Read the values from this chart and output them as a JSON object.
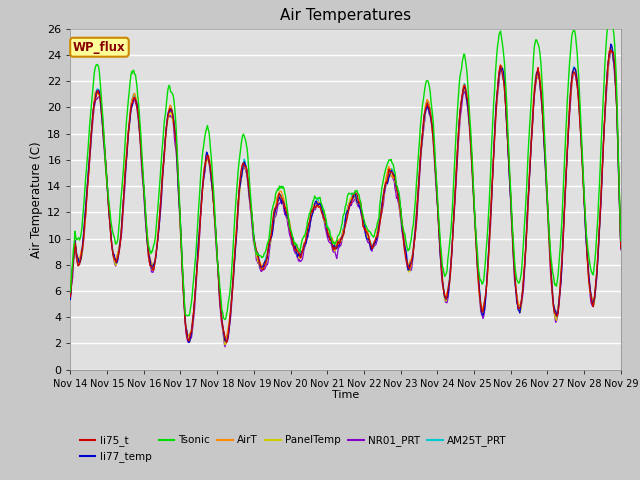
{
  "title": "Air Temperatures",
  "ylabel": "Air Temperature (C)",
  "xlabel": "Time",
  "ylim": [
    0,
    26
  ],
  "yticks": [
    0,
    2,
    4,
    6,
    8,
    10,
    12,
    14,
    16,
    18,
    20,
    22,
    24,
    26
  ],
  "xtick_labels": [
    "Nov 14",
    "Nov 15",
    "Nov 16",
    "Nov 17",
    "Nov 18",
    "Nov 19",
    "Nov 20",
    "Nov 21",
    "Nov 22",
    "Nov 23",
    "Nov 24",
    "Nov 25",
    "Nov 26",
    "Nov 27",
    "Nov 28",
    "Nov 29"
  ],
  "series_colors": {
    "li75_t": "#cc0000",
    "li77_temp": "#0000cc",
    "Tsonic": "#00dd00",
    "AirT": "#ff8800",
    "PanelTemp": "#cccc00",
    "NR01_PRT": "#8800cc",
    "AM25T_PRT": "#00cccc"
  },
  "annotation_text": "WP_flux",
  "n_points": 720,
  "figsize": [
    6.4,
    4.8
  ],
  "dpi": 100
}
